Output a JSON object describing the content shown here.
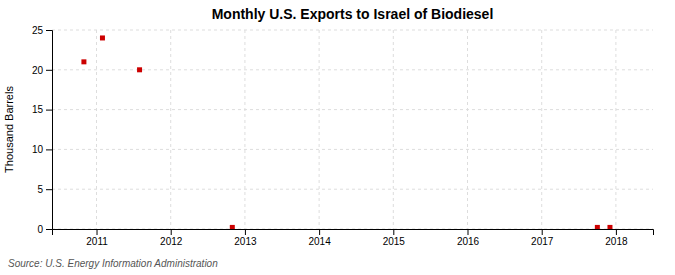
{
  "chart_data": {
    "type": "scatter",
    "title": "Monthly U.S. Exports to Israel of Biodiesel",
    "ylabel": "Thousand Barrels",
    "source": "Source: U.S. Energy Information Administration",
    "x": [
      2010.83,
      2011.08,
      2011.58,
      2012.83,
      2017.75,
      2017.92
    ],
    "values": [
      21,
      24,
      20,
      0.2,
      0.2,
      0.2
    ],
    "color": "#cc0000",
    "marker": "square",
    "xlim": [
      2010.4,
      2018.5
    ],
    "ylim": [
      0,
      25
    ],
    "xticks": [
      2011,
      2012,
      2013,
      2014,
      2015,
      2016,
      2017,
      2018
    ],
    "yticks": [
      0,
      5,
      10,
      15,
      20,
      25
    ],
    "grid": true
  }
}
